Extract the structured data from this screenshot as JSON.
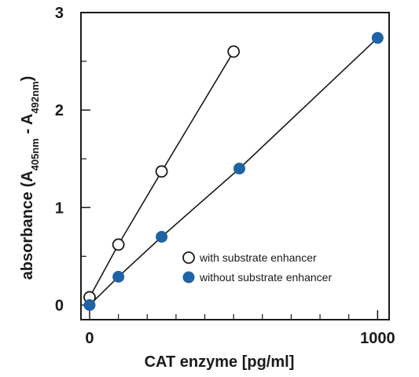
{
  "chart_data": {
    "type": "line",
    "xlabel": "CAT enzyme [pg/ml]",
    "ylabel": {
      "prefix": "absorbance (A",
      "sub1": "405nm",
      "middle": " - A",
      "sub2": "492nm",
      "suffix": ")"
    },
    "xlim": [
      -30,
      1040
    ],
    "ylim": [
      -0.15,
      3.0
    ],
    "x_ticks": [
      {
        "value": 0,
        "label": "0"
      },
      {
        "value": 1000,
        "label": "1000"
      }
    ],
    "x_minor_ticks": [
      100,
      200,
      300,
      400,
      500,
      600,
      700,
      800,
      900
    ],
    "y_ticks": [
      {
        "value": 0,
        "label": "0"
      },
      {
        "value": 1,
        "label": "1"
      },
      {
        "value": 2,
        "label": "2"
      },
      {
        "value": 3,
        "label": "3"
      }
    ],
    "y_minor_ticks": [
      0.5,
      1.5,
      2.5
    ],
    "grid": false,
    "legend_position": "bottom-right",
    "series": [
      {
        "name": "with substrate enhancer",
        "marker": "open-circle",
        "color": "#1a1a1a",
        "fill": "#ffffff",
        "x": [
          0,
          100,
          250,
          500
        ],
        "y": [
          0.08,
          0.62,
          1.37,
          2.6
        ]
      },
      {
        "name": "without substrate enhancer",
        "marker": "filled-circle",
        "color": "#1f63a5",
        "fill": "#1f63a5",
        "x": [
          0,
          100,
          250,
          520,
          1000
        ],
        "y": [
          0.0,
          0.29,
          0.7,
          1.4,
          2.74
        ]
      }
    ]
  }
}
